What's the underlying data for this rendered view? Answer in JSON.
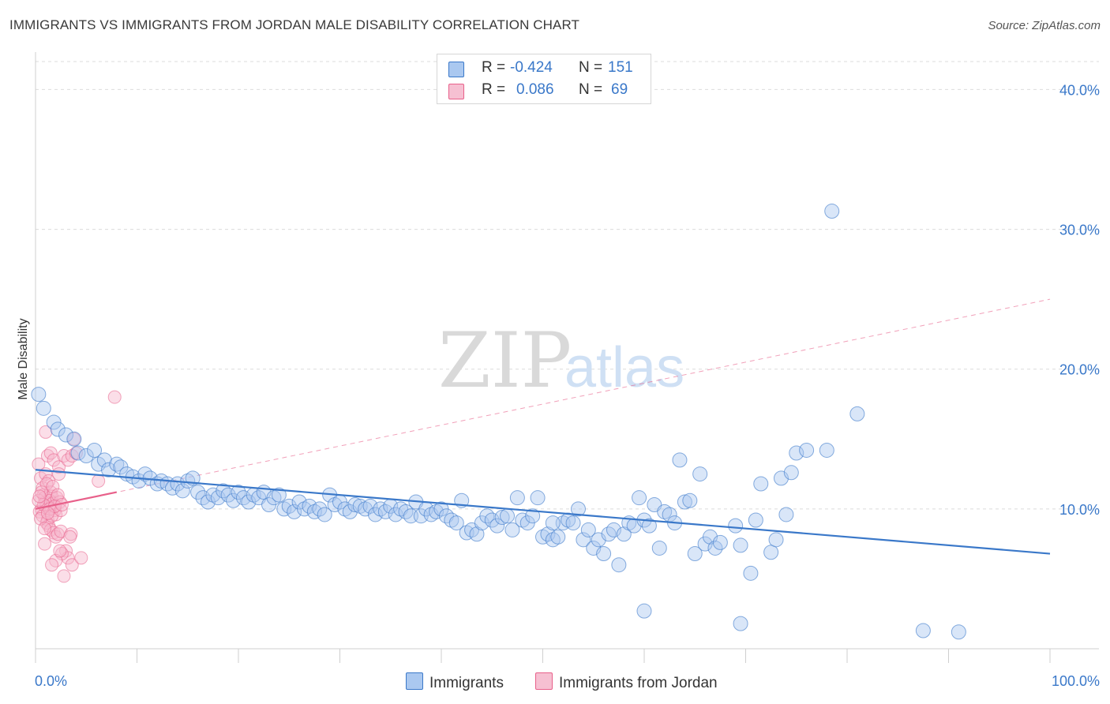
{
  "header": {
    "title": "IMMIGRANTS VS IMMIGRANTS FROM JORDAN MALE DISABILITY CORRELATION CHART",
    "source": "Source: ZipAtlas.com"
  },
  "colors": {
    "blue": "#3a78c9",
    "blue_fill": "#aac8f0",
    "pink": "#e8608a",
    "pink_fill": "#f6b6cb",
    "grid": "#dcdcdc"
  },
  "legend": {
    "r_label": "R =",
    "n_label": "N =",
    "series1": {
      "r": "-0.424",
      "n": "151"
    },
    "series2": {
      "r": "0.086",
      "n": "69"
    }
  },
  "bottom_legend": {
    "series1": "Immigrants",
    "series2": "Immigrants from Jordan"
  },
  "watermark": {
    "zip": "ZIP",
    "atlas": "atlas"
  },
  "chart_data": {
    "type": "scatter",
    "xlabel": "",
    "ylabel": "Male Disability",
    "xlim": [
      0,
      100
    ],
    "ylim": [
      0,
      42
    ],
    "x_tick_labels": [
      "0.0%",
      "100.0%"
    ],
    "y_ticks": [
      10,
      20,
      30,
      40
    ],
    "y_tick_labels": [
      "10.0%",
      "20.0%",
      "30.0%",
      "40.0%"
    ],
    "grid": true,
    "legend_placement": "top-center",
    "series": [
      {
        "name": "Immigrants",
        "color": "#3a78c9",
        "trend": {
          "x": [
            0,
            100
          ],
          "y": [
            12.8,
            6.8
          ],
          "style": "solid"
        },
        "points": [
          [
            0.3,
            18.2
          ],
          [
            0.8,
            17.2
          ],
          [
            1.8,
            16.2
          ],
          [
            2.2,
            15.7
          ],
          [
            3.0,
            15.3
          ],
          [
            3.8,
            15.0
          ],
          [
            4.2,
            14.0
          ],
          [
            5.0,
            13.8
          ],
          [
            5.8,
            14.2
          ],
          [
            6.2,
            13.2
          ],
          [
            6.8,
            13.5
          ],
          [
            7.2,
            12.8
          ],
          [
            8.0,
            13.2
          ],
          [
            8.4,
            13.0
          ],
          [
            9.0,
            12.5
          ],
          [
            9.6,
            12.3
          ],
          [
            10.2,
            12.0
          ],
          [
            10.8,
            12.5
          ],
          [
            11.3,
            12.2
          ],
          [
            12.0,
            11.8
          ],
          [
            12.4,
            12.0
          ],
          [
            13.0,
            11.8
          ],
          [
            13.5,
            11.5
          ],
          [
            14.0,
            11.8
          ],
          [
            14.5,
            11.3
          ],
          [
            15.0,
            12.0
          ],
          [
            15.5,
            12.2
          ],
          [
            16.0,
            11.2
          ],
          [
            16.5,
            10.8
          ],
          [
            17.0,
            10.5
          ],
          [
            17.5,
            11.0
          ],
          [
            18.0,
            10.8
          ],
          [
            18.5,
            11.3
          ],
          [
            19.0,
            11.0
          ],
          [
            19.5,
            10.6
          ],
          [
            20.0,
            11.2
          ],
          [
            20.5,
            10.8
          ],
          [
            21.0,
            10.5
          ],
          [
            21.5,
            11.0
          ],
          [
            22.0,
            10.8
          ],
          [
            22.5,
            11.2
          ],
          [
            23.0,
            10.3
          ],
          [
            23.5,
            10.8
          ],
          [
            24.0,
            11.0
          ],
          [
            24.5,
            10.0
          ],
          [
            25.0,
            10.2
          ],
          [
            25.5,
            9.8
          ],
          [
            26.0,
            10.5
          ],
          [
            26.5,
            10.0
          ],
          [
            27.0,
            10.2
          ],
          [
            27.5,
            9.8
          ],
          [
            28.0,
            10.0
          ],
          [
            28.5,
            9.6
          ],
          [
            29.0,
            11.0
          ],
          [
            29.5,
            10.3
          ],
          [
            30.0,
            10.5
          ],
          [
            30.5,
            10.0
          ],
          [
            31.0,
            9.8
          ],
          [
            31.5,
            10.3
          ],
          [
            32.0,
            10.2
          ],
          [
            32.5,
            10.0
          ],
          [
            33.0,
            10.2
          ],
          [
            33.5,
            9.6
          ],
          [
            34.0,
            10.0
          ],
          [
            34.5,
            9.8
          ],
          [
            35.0,
            10.2
          ],
          [
            35.5,
            9.6
          ],
          [
            36.0,
            10.0
          ],
          [
            36.5,
            9.8
          ],
          [
            37.0,
            9.5
          ],
          [
            37.5,
            10.5
          ],
          [
            38.0,
            9.5
          ],
          [
            38.5,
            10.0
          ],
          [
            39.0,
            9.6
          ],
          [
            39.5,
            9.8
          ],
          [
            40.0,
            10.0
          ],
          [
            40.5,
            9.5
          ],
          [
            41.0,
            9.2
          ],
          [
            41.5,
            9.0
          ],
          [
            42.0,
            10.6
          ],
          [
            42.5,
            8.3
          ],
          [
            43.0,
            8.5
          ],
          [
            43.5,
            8.2
          ],
          [
            44.0,
            9.0
          ],
          [
            44.5,
            9.5
          ],
          [
            45.0,
            9.2
          ],
          [
            45.5,
            8.8
          ],
          [
            46.0,
            9.4
          ],
          [
            46.5,
            9.5
          ],
          [
            47.0,
            8.5
          ],
          [
            47.5,
            10.8
          ],
          [
            48.0,
            9.2
          ],
          [
            48.5,
            9.0
          ],
          [
            49.0,
            9.5
          ],
          [
            49.5,
            10.8
          ],
          [
            50.0,
            8.0
          ],
          [
            50.5,
            8.2
          ],
          [
            51.0,
            7.8
          ],
          [
            51.5,
            8.0
          ],
          [
            52.0,
            9.0
          ],
          [
            52.5,
            9.2
          ],
          [
            53.0,
            9.0
          ],
          [
            53.5,
            10.0
          ],
          [
            54.0,
            7.8
          ],
          [
            54.5,
            8.5
          ],
          [
            55.0,
            7.2
          ],
          [
            55.5,
            7.8
          ],
          [
            56.0,
            6.8
          ],
          [
            56.5,
            8.2
          ],
          [
            57.0,
            8.5
          ],
          [
            57.5,
            6.0
          ],
          [
            58.0,
            8.2
          ],
          [
            58.5,
            9.0
          ],
          [
            59.0,
            8.8
          ],
          [
            59.5,
            10.8
          ],
          [
            60.0,
            9.2
          ],
          [
            60.5,
            8.8
          ],
          [
            61.0,
            10.3
          ],
          [
            61.5,
            7.2
          ],
          [
            62.0,
            9.8
          ],
          [
            62.5,
            9.6
          ],
          [
            63.0,
            9.0
          ],
          [
            63.5,
            13.5
          ],
          [
            64.0,
            10.5
          ],
          [
            64.5,
            10.6
          ],
          [
            65.0,
            6.8
          ],
          [
            65.5,
            12.5
          ],
          [
            66.0,
            7.5
          ],
          [
            66.5,
            8.0
          ],
          [
            67.0,
            7.2
          ],
          [
            67.5,
            7.6
          ],
          [
            69.0,
            8.8
          ],
          [
            69.5,
            7.4
          ],
          [
            70.5,
            5.4
          ],
          [
            71.0,
            9.2
          ],
          [
            71.5,
            11.8
          ],
          [
            72.5,
            6.9
          ],
          [
            73.0,
            7.8
          ],
          [
            73.5,
            12.2
          ],
          [
            74.0,
            9.6
          ],
          [
            74.5,
            12.6
          ],
          [
            75.0,
            14.0
          ],
          [
            76.0,
            14.2
          ],
          [
            78.0,
            14.2
          ],
          [
            81.0,
            16.8
          ],
          [
            78.5,
            31.3
          ],
          [
            60.0,
            2.7
          ],
          [
            69.5,
            1.8
          ],
          [
            87.5,
            1.3
          ],
          [
            91.0,
            1.2
          ],
          [
            51.0,
            9.0
          ]
        ]
      },
      {
        "name": "Immigrants from Jordan",
        "color": "#e8608a",
        "trend": {
          "x": [
            0,
            8
          ],
          "y": [
            10.0,
            11.2
          ],
          "style": "solid"
        },
        "trend_extended": {
          "x": [
            0,
            100
          ],
          "y": [
            10.0,
            25.0
          ],
          "style": "dashed"
        },
        "points": [
          [
            0.3,
            13.2
          ],
          [
            0.5,
            12.2
          ],
          [
            0.7,
            11.5
          ],
          [
            0.8,
            11.0
          ],
          [
            0.9,
            10.8
          ],
          [
            1.0,
            10.5
          ],
          [
            1.1,
            10.2
          ],
          [
            0.6,
            10.0
          ],
          [
            0.4,
            9.8
          ],
          [
            0.7,
            9.5
          ],
          [
            1.2,
            9.2
          ],
          [
            1.0,
            12.5
          ],
          [
            1.3,
            12.0
          ],
          [
            1.5,
            11.2
          ],
          [
            1.6,
            10.9
          ],
          [
            1.4,
            10.6
          ],
          [
            1.7,
            10.4
          ],
          [
            1.8,
            10.1
          ],
          [
            1.9,
            9.9
          ],
          [
            2.0,
            9.6
          ],
          [
            1.1,
            9.0
          ],
          [
            1.3,
            8.8
          ],
          [
            1.5,
            8.5
          ],
          [
            1.8,
            8.3
          ],
          [
            2.0,
            8.0
          ],
          [
            2.2,
            8.2
          ],
          [
            2.5,
            8.4
          ],
          [
            1.2,
            13.8
          ],
          [
            1.5,
            14.0
          ],
          [
            1.0,
            15.5
          ],
          [
            1.8,
            13.5
          ],
          [
            2.3,
            13.0
          ],
          [
            2.8,
            13.8
          ],
          [
            3.2,
            13.5
          ],
          [
            3.6,
            13.8
          ],
          [
            4.0,
            14.0
          ],
          [
            3.8,
            15.0
          ],
          [
            3.5,
            8.2
          ],
          [
            3.4,
            8.0
          ],
          [
            3.0,
            7.0
          ],
          [
            3.2,
            6.5
          ],
          [
            2.6,
            6.8
          ],
          [
            2.0,
            6.3
          ],
          [
            1.6,
            6.0
          ],
          [
            2.4,
            7.0
          ],
          [
            3.6,
            6.0
          ],
          [
            2.8,
            5.2
          ],
          [
            4.5,
            6.5
          ],
          [
            0.9,
            7.5
          ],
          [
            0.5,
            9.3
          ],
          [
            0.8,
            10.3
          ],
          [
            1.1,
            11.8
          ],
          [
            1.4,
            10.0
          ],
          [
            1.6,
            9.5
          ],
          [
            2.1,
            10.8
          ],
          [
            2.4,
            10.5
          ],
          [
            2.5,
            9.9
          ],
          [
            0.3,
            10.6
          ],
          [
            0.6,
            11.2
          ],
          [
            0.4,
            10.9
          ],
          [
            1.7,
            11.6
          ],
          [
            2.2,
            11.0
          ],
          [
            1.9,
            10.2
          ],
          [
            2.6,
            10.3
          ],
          [
            0.9,
            8.6
          ],
          [
            6.2,
            12.0
          ],
          [
            7.8,
            18.0
          ],
          [
            2.3,
            12.5
          ],
          [
            1.2,
            9.7
          ]
        ]
      }
    ]
  }
}
